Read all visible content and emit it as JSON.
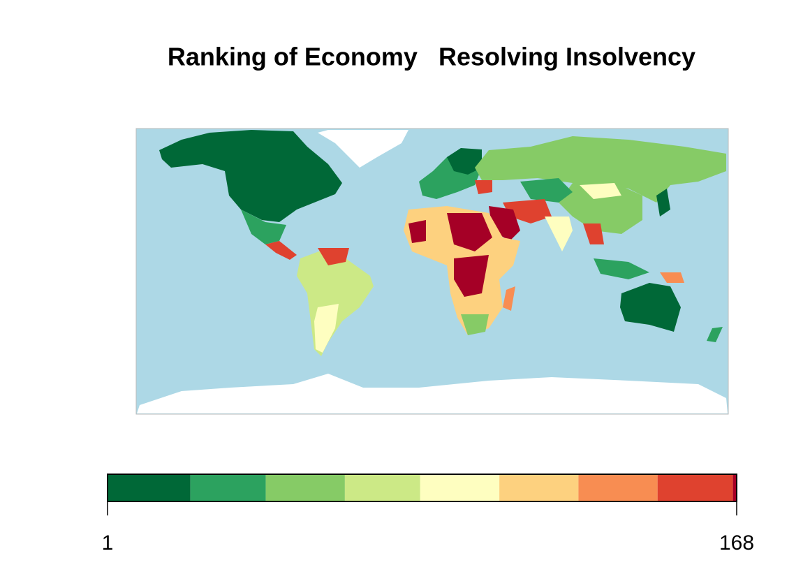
{
  "chart_data": {
    "type": "choropleth",
    "title": "Ranking of Economy   Resolving Insolvency",
    "breaks": [
      1,
      23,
      43,
      64,
      84,
      105,
      126,
      147,
      167,
      168
    ],
    "colors": [
      "#006837",
      "#2ca25f",
      "#86cb66",
      "#cce986",
      "#fefec0",
      "#fdd17f",
      "#f88d52",
      "#df422f",
      "#a50026"
    ],
    "xlim": [
      1,
      168
    ],
    "xticks": [
      1,
      168
    ]
  }
}
